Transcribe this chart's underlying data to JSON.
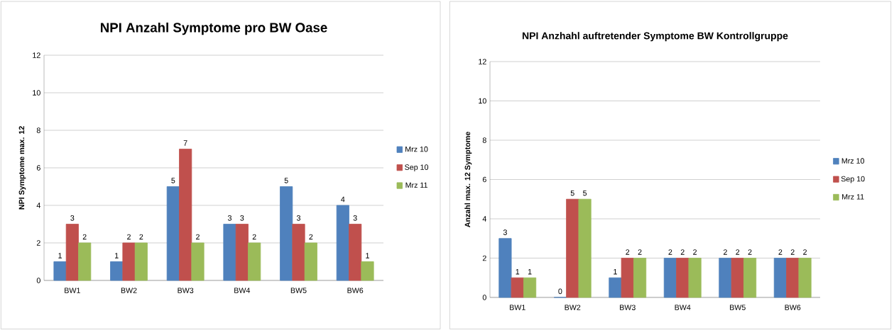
{
  "chart_data": [
    {
      "type": "bar",
      "title": "NPI Anzahl Symptome pro BW Oase",
      "ylabel": "NPI Symptome max. 12",
      "categories": [
        "BW1",
        "BW2",
        "BW3",
        "BW4",
        "BW5",
        "BW6"
      ],
      "series": [
        {
          "name": "Mrz 10",
          "color": "#4f81bd",
          "values": [
            1,
            1,
            5,
            3,
            5,
            4
          ]
        },
        {
          "name": "Sep 10",
          "color": "#c0504d",
          "values": [
            3,
            2,
            7,
            3,
            3,
            3
          ]
        },
        {
          "name": "Mrz 11",
          "color": "#9bbb59",
          "values": [
            2,
            2,
            2,
            2,
            2,
            1
          ]
        }
      ],
      "ylim": [
        0,
        12
      ],
      "yticks": [
        0,
        2,
        4,
        6,
        8,
        10,
        12
      ],
      "grid": "y",
      "legend": "right",
      "data_labels": true
    },
    {
      "type": "bar",
      "title": "NPI Anzhahl auftretender Symptome BW Kontrollgruppe",
      "ylabel": "Anzahl max. 12 Symptome",
      "categories": [
        "BW1",
        "BW2",
        "BW3",
        "BW4",
        "BW5",
        "BW6"
      ],
      "series": [
        {
          "name": "Mrz 10",
          "color": "#4f81bd",
          "values": [
            3,
            0,
            1,
            2,
            2,
            2
          ]
        },
        {
          "name": "Sep 10",
          "color": "#c0504d",
          "values": [
            1,
            5,
            2,
            2,
            2,
            2
          ]
        },
        {
          "name": "Mrz 11",
          "color": "#9bbb59",
          "values": [
            1,
            5,
            2,
            2,
            2,
            2
          ]
        }
      ],
      "ylim": [
        0,
        12
      ],
      "yticks": [
        0,
        2,
        4,
        6,
        8,
        10,
        12
      ],
      "grid": "y",
      "legend": "right",
      "data_labels": true
    }
  ]
}
